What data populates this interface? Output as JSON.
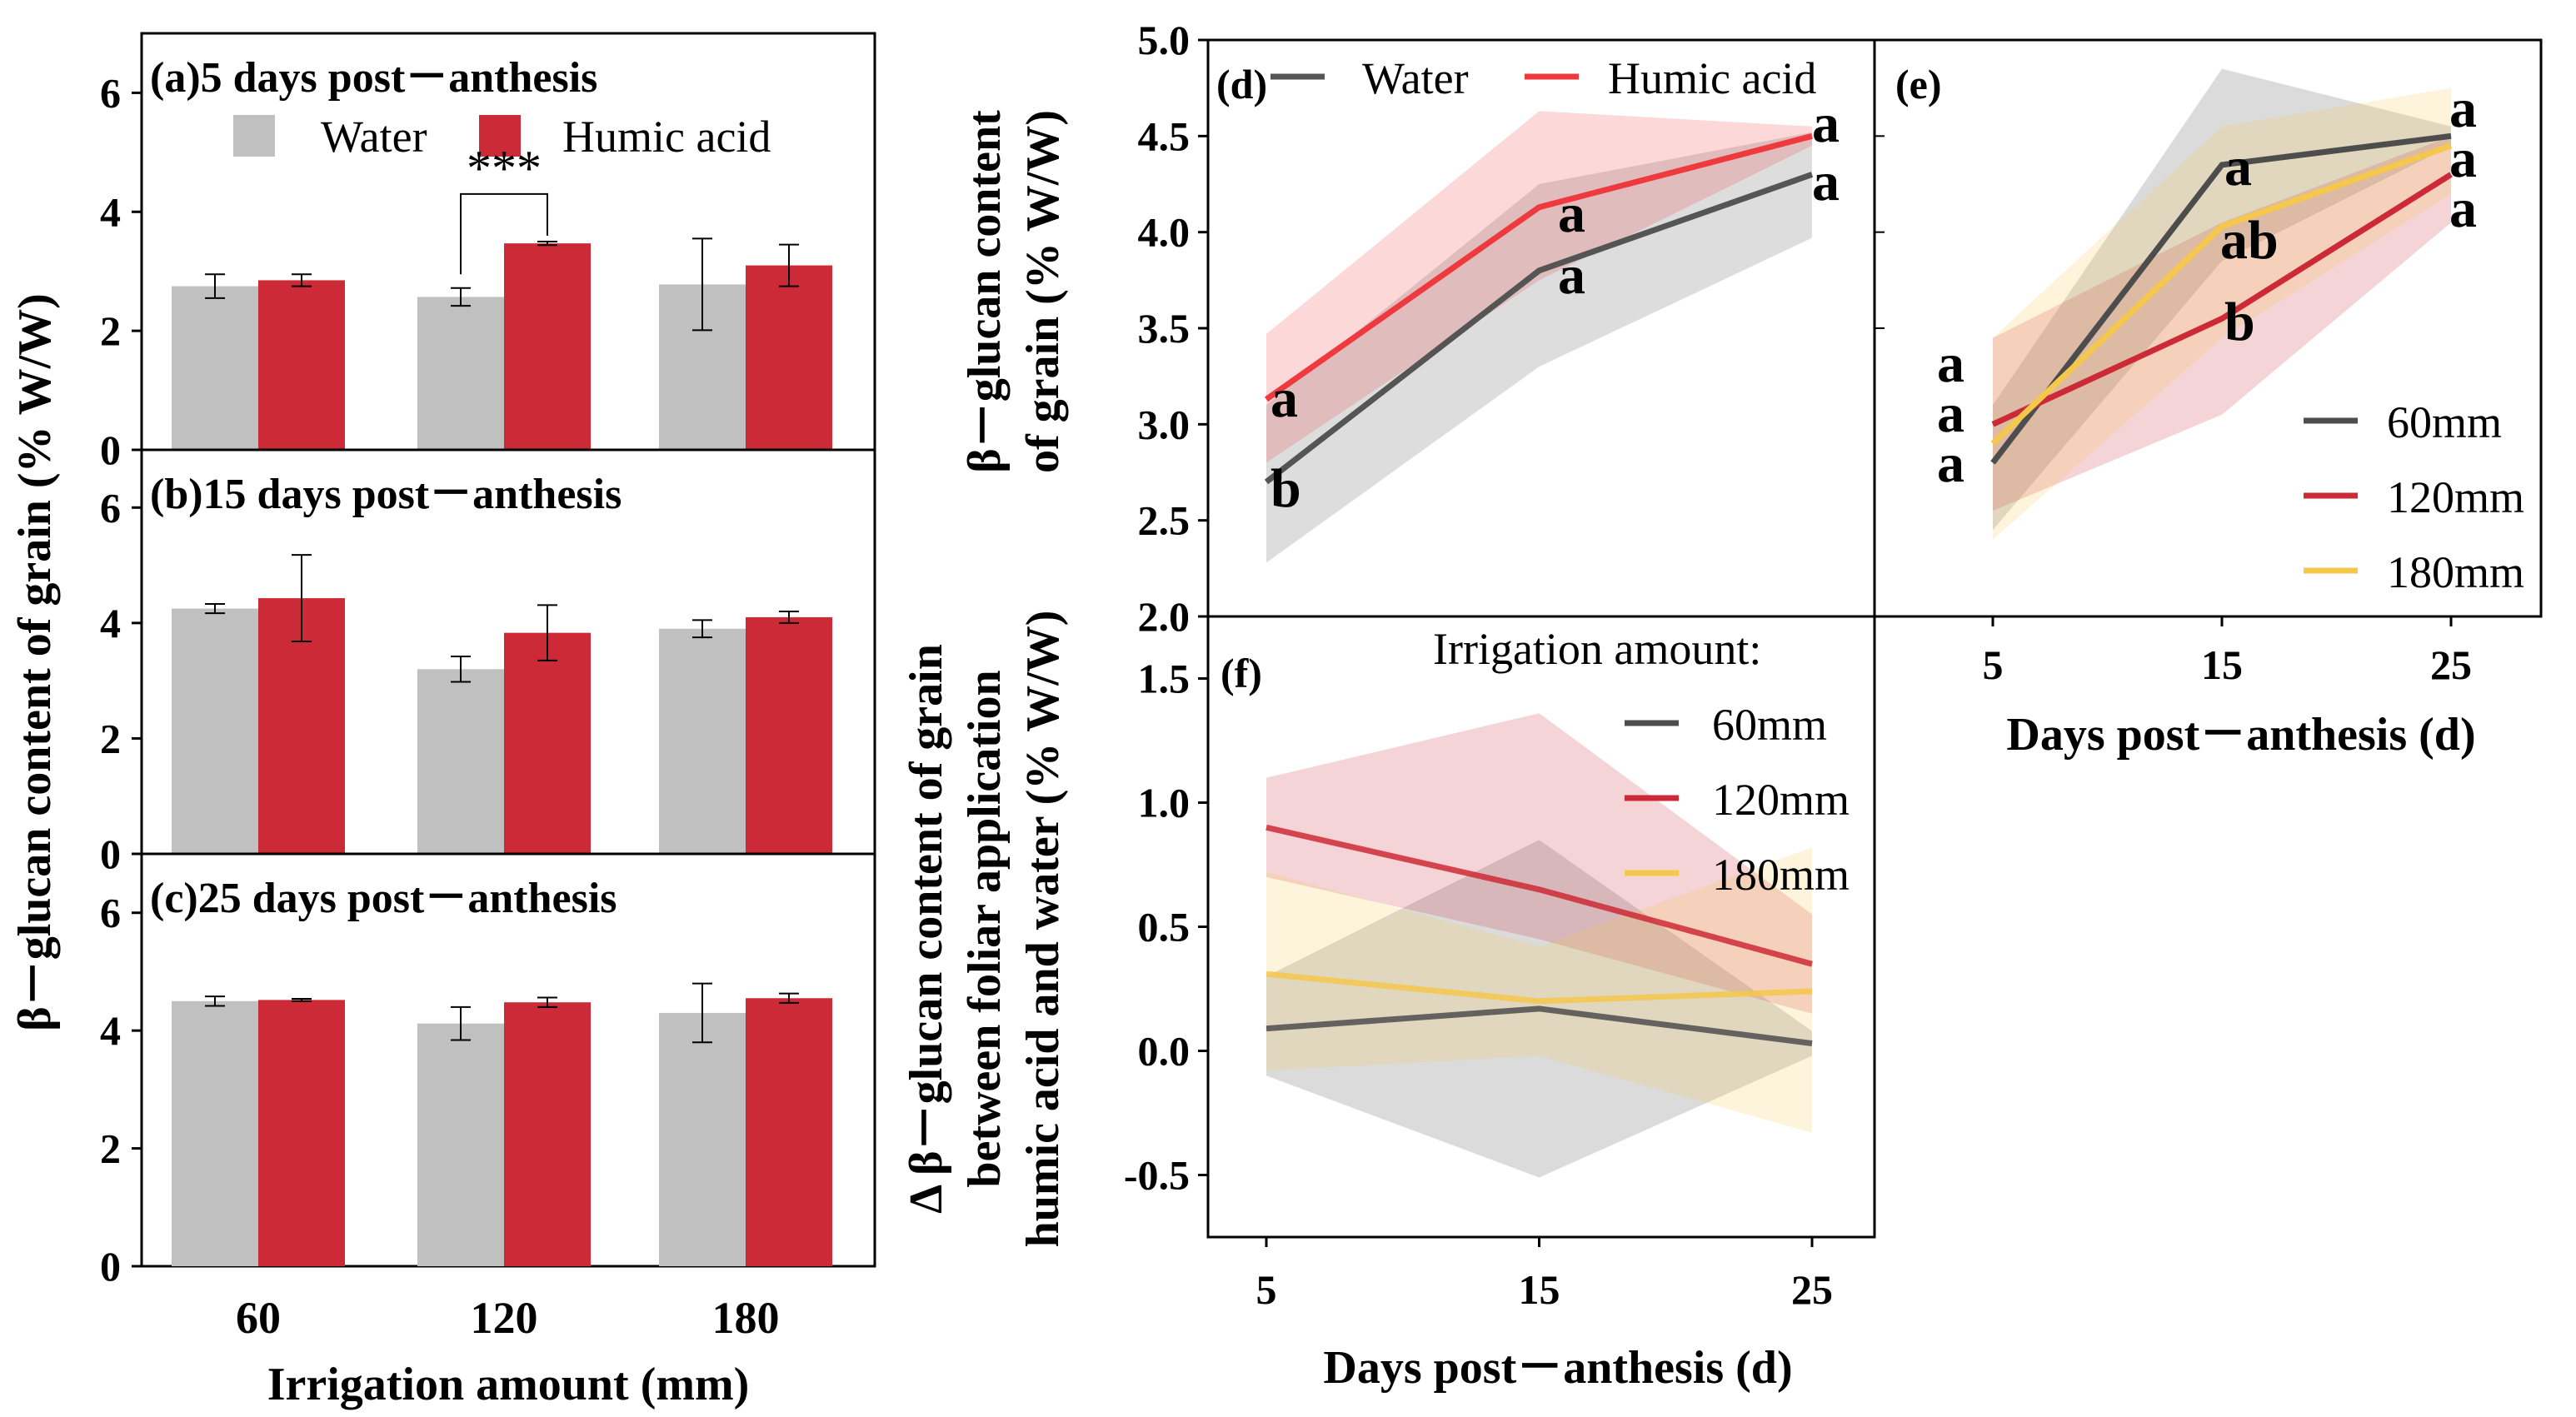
{
  "figure": {
    "shared_ylabel_abc": "β－glucan content of grain (% W/W)",
    "colors": {
      "water": "#c0c0c0",
      "humic": "#cc2a36",
      "water_line": "#555555",
      "humic_line": "#ee3a3f",
      "mm60": "#4d4d4d",
      "mm120": "#cc2a36",
      "mm180": "#f5c74b"
    }
  },
  "chart_data": [
    {
      "id": "a",
      "type": "bar",
      "title": "(a)5 days post－anthesis",
      "categories": [
        "60",
        "120",
        "180"
      ],
      "series": [
        {
          "name": "Water",
          "values": [
            2.75,
            2.57,
            2.78
          ],
          "errors": [
            0.2,
            0.15,
            0.77
          ]
        },
        {
          "name": "Humic acid",
          "values": [
            2.85,
            3.47,
            3.1
          ],
          "errors": [
            0.1,
            0.03,
            0.35
          ]
        }
      ],
      "ylim": [
        0,
        7
      ],
      "yticks": [
        "0",
        "2",
        "4",
        "6"
      ],
      "legend": [
        "Water",
        "Humic acid"
      ],
      "annotation": "***"
    },
    {
      "id": "b",
      "type": "bar",
      "title": "(b)15 days post－anthesis",
      "categories": [
        "60",
        "120",
        "180"
      ],
      "series": [
        {
          "name": "Water",
          "values": [
            4.25,
            3.2,
            3.9
          ],
          "errors": [
            0.08,
            0.22,
            0.15
          ]
        },
        {
          "name": "Humic acid",
          "values": [
            4.43,
            3.83,
            4.1
          ],
          "errors": [
            0.75,
            0.48,
            0.1
          ]
        }
      ],
      "ylim": [
        0,
        7
      ],
      "yticks": [
        "0",
        "2",
        "4",
        "6"
      ]
    },
    {
      "id": "c",
      "type": "bar",
      "title": "(c)25 days post－anthesis",
      "categories": [
        "60",
        "120",
        "180"
      ],
      "series": [
        {
          "name": "Water",
          "values": [
            4.5,
            4.12,
            4.3
          ],
          "errors": [
            0.08,
            0.28,
            0.5
          ]
        },
        {
          "name": "Humic acid",
          "values": [
            4.52,
            4.48,
            4.55
          ],
          "errors": [
            0.02,
            0.08,
            0.08
          ]
        }
      ],
      "ylim": [
        0,
        7
      ],
      "yticks": [
        "0",
        "2",
        "4",
        "6"
      ],
      "xlabel": "Irrigation amount (mm)"
    },
    {
      "id": "d",
      "type": "line",
      "label": "(d)",
      "x": [
        5,
        15,
        25
      ],
      "series": [
        {
          "name": "Water",
          "values": [
            2.7,
            3.8,
            4.3
          ],
          "lower": [
            2.28,
            3.3,
            3.97
          ],
          "upper": [
            3.1,
            4.25,
            4.52
          ],
          "sig": [
            "b",
            "a",
            "a"
          ]
        },
        {
          "name": "Humic acid",
          "values": [
            3.13,
            4.13,
            4.5
          ],
          "lower": [
            2.8,
            3.75,
            4.45
          ],
          "upper": [
            3.47,
            4.63,
            4.55
          ],
          "sig": [
            "a",
            "a",
            "a"
          ]
        }
      ],
      "ylim": [
        2.0,
        5.0
      ],
      "yticks": [
        "2.0",
        "2.5",
        "3.0",
        "3.5",
        "4.0",
        "4.5",
        "5.0"
      ],
      "ylabel_line1": "β－glucan content",
      "ylabel_line2": "of grain (% W/W)",
      "legend": [
        "Water",
        "Humic acid"
      ]
    },
    {
      "id": "e",
      "type": "line",
      "label": "(e)",
      "x": [
        5,
        15,
        25
      ],
      "series": [
        {
          "name": "60mm",
          "values": [
            2.8,
            4.35,
            4.5
          ],
          "lower": [
            2.45,
            3.85,
            4.45
          ],
          "upper": [
            3.1,
            4.85,
            4.55
          ],
          "sig": [
            "a",
            "a",
            "a"
          ]
        },
        {
          "name": "120mm",
          "values": [
            3.0,
            3.55,
            4.3
          ],
          "lower": [
            2.55,
            3.05,
            4.05
          ],
          "upper": [
            3.45,
            4.05,
            4.5
          ],
          "sig": [
            "a",
            "b",
            "a"
          ]
        },
        {
          "name": "180mm",
          "values": [
            2.9,
            4.03,
            4.45
          ],
          "lower": [
            2.4,
            3.45,
            4.2
          ],
          "upper": [
            3.45,
            4.55,
            4.75
          ],
          "sig": [
            "a",
            "ab",
            "a"
          ]
        }
      ],
      "ylim": [
        2.0,
        5.0
      ],
      "xticks": [
        "5",
        "15",
        "25"
      ],
      "xlabel": "Days post－anthesis (d)",
      "legend": [
        "60mm",
        "120mm",
        "180mm"
      ]
    },
    {
      "id": "f",
      "type": "line",
      "label": "(f)",
      "x": [
        5,
        15,
        25
      ],
      "series": [
        {
          "name": "60mm",
          "values": [
            0.09,
            0.17,
            0.03
          ],
          "lower": [
            -0.1,
            -0.51,
            -0.02
          ],
          "upper": [
            0.3,
            0.85,
            0.08
          ]
        },
        {
          "name": "120mm",
          "values": [
            0.9,
            0.65,
            0.35
          ],
          "lower": [
            0.7,
            0.45,
            0.15
          ],
          "upper": [
            1.1,
            1.36,
            0.55
          ]
        },
        {
          "name": "180mm",
          "values": [
            0.31,
            0.2,
            0.24
          ],
          "lower": [
            -0.08,
            -0.02,
            -0.33
          ],
          "upper": [
            0.72,
            0.42,
            0.82
          ]
        }
      ],
      "ylim": [
        -0.75,
        1.75
      ],
      "yticks": [
        "-0.5",
        "0.0",
        "0.5",
        "1.0",
        "1.5"
      ],
      "xticks": [
        "5",
        "15",
        "25"
      ],
      "xlabel": "Days post－anthesis (d)",
      "ylabel_line1": "Δ β－glucan content of grain",
      "ylabel_line2": "between foliar application",
      "ylabel_line3": "humic acid and water (% W/W)",
      "legend_title": "Irrigation amount:",
      "legend": [
        "60mm",
        "120mm",
        "180mm"
      ]
    }
  ]
}
